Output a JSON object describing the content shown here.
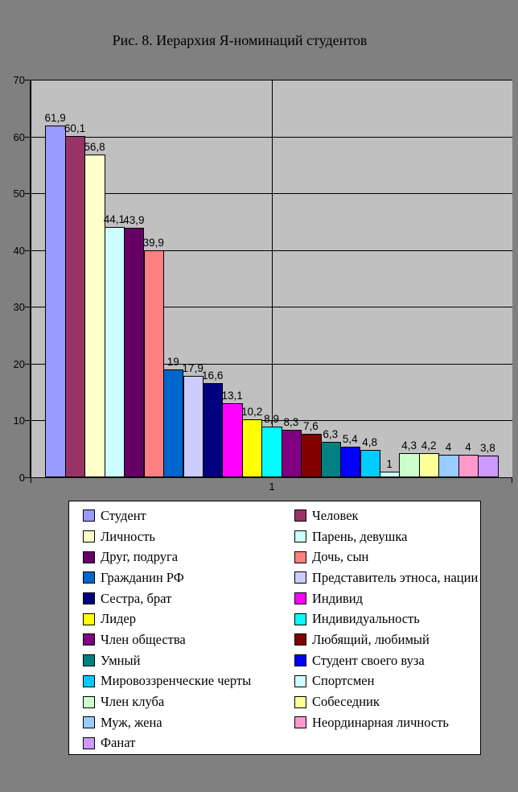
{
  "chart_data": {
    "type": "bar",
    "title": "Рис. 8. Иерархия Я-номинаций студентов",
    "categories": [
      "1"
    ],
    "xlabel": "",
    "ylabel": "",
    "ylim": [
      0,
      70
    ],
    "ytick_interval": 10,
    "ytick_labels": [
      "0",
      "10",
      "20",
      "30",
      "40",
      "50",
      "60",
      "70"
    ],
    "grid": true,
    "legend_position": "bottom",
    "legend_columns": 2,
    "series": [
      {
        "name": "Студент",
        "value": 61.9,
        "label": "61,9",
        "color": "#9999FF"
      },
      {
        "name": "Человек",
        "value": 60.1,
        "label": "60,1",
        "color": "#993366"
      },
      {
        "name": "Личность",
        "value": 56.8,
        "label": "56,8",
        "color": "#FFFFCC"
      },
      {
        "name": "Парень, девушка",
        "value": 44.1,
        "label": "44,1",
        "color": "#CCFFFF"
      },
      {
        "name": "Друг, подруга",
        "value": 43.9,
        "label": "43,9",
        "color": "#660066"
      },
      {
        "name": "Дочь, сын",
        "value": 39.9,
        "label": "39,9",
        "color": "#FF8080"
      },
      {
        "name": "Гражданин РФ",
        "value": 19,
        "label": "19",
        "color": "#0066CC"
      },
      {
        "name": "Представитель этноса, нации",
        "value": 17.9,
        "label": "17,9",
        "color": "#CCCCFF"
      },
      {
        "name": "Сестра, брат",
        "value": 16.6,
        "label": "16,6",
        "color": "#000080"
      },
      {
        "name": "Индивид",
        "value": 13.1,
        "label": "13,1",
        "color": "#FF00FF"
      },
      {
        "name": "Лидер",
        "value": 10.2,
        "label": "10,2",
        "color": "#FFFF00"
      },
      {
        "name": "Индивидуальность",
        "value": 8.9,
        "label": "8,9",
        "color": "#00FFFF"
      },
      {
        "name": "Член общества",
        "value": 8.3,
        "label": "8,3",
        "color": "#800080"
      },
      {
        "name": "Любящий, любимый",
        "value": 7.6,
        "label": "7,6",
        "color": "#800000"
      },
      {
        "name": "Умный",
        "value": 6.3,
        "label": "6,3",
        "color": "#008080"
      },
      {
        "name": "Студент своего вуза",
        "value": 5.4,
        "label": "5,4",
        "color": "#0000FF"
      },
      {
        "name": "Мировоззренческие черты",
        "value": 4.8,
        "label": "4,8",
        "color": "#00CCFF"
      },
      {
        "name": "Спортсмен",
        "value": 1,
        "label": "1",
        "color": "#CCFFFF"
      },
      {
        "name": "Член клуба",
        "value": 4.3,
        "label": "4,3",
        "color": "#CCFFCC"
      },
      {
        "name": "Собеседник",
        "value": 4.2,
        "label": "4,2",
        "color": "#FFFF99"
      },
      {
        "name": "Муж, жена",
        "value": 4,
        "label": "4",
        "color": "#99CCFF"
      },
      {
        "name": "Неординарная личность",
        "value": 4,
        "label": "4",
        "color": "#FF99CC"
      },
      {
        "name": "Фанат",
        "value": 3.8,
        "label": "3,8",
        "color": "#CC99FF"
      }
    ],
    "colors": {
      "page_bg": "#808080",
      "plot_bg": "#C0C0C0",
      "legend_bg": "#FFFFFF",
      "axis_line": "#000000"
    }
  }
}
